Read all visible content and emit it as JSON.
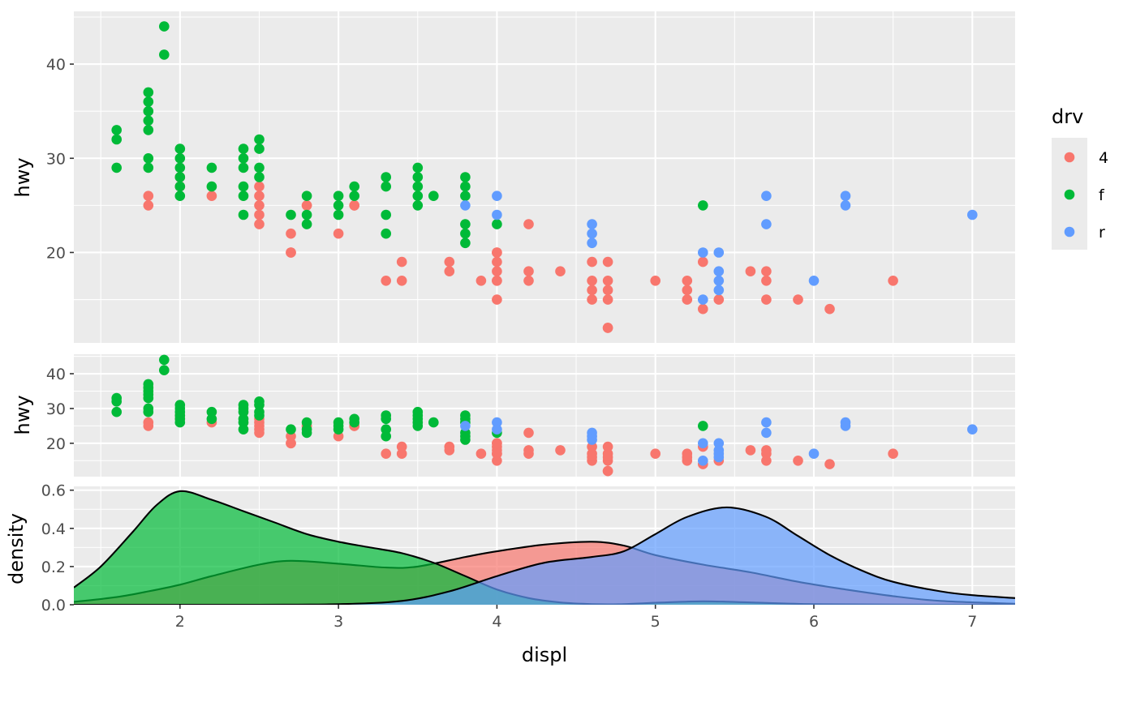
{
  "chart_data": [
    {
      "type": "scatter",
      "panel": "top",
      "xlabel": "",
      "ylabel": "hwy",
      "xlim": [
        1.33,
        7.27
      ],
      "ylim": [
        10.4,
        45.6
      ],
      "yticks": [
        20,
        30,
        40
      ],
      "series": [
        {
          "name": "4",
          "points": [
            [
              1.8,
              26
            ],
            [
              1.8,
              25
            ],
            [
              2.0,
              28
            ],
            [
              2.0,
              27
            ],
            [
              2.8,
              25
            ],
            [
              2.8,
              25
            ],
            [
              3.1,
              25
            ],
            [
              3.1,
              25
            ],
            [
              2.2,
              26
            ],
            [
              2.5,
              23
            ],
            [
              2.5,
              24
            ],
            [
              2.5,
              25
            ],
            [
              2.5,
              26
            ],
            [
              2.5,
              27
            ],
            [
              2.7,
              20
            ],
            [
              2.7,
              20
            ],
            [
              2.7,
              22
            ],
            [
              3.0,
              22
            ],
            [
              3.3,
              17
            ],
            [
              3.4,
              17
            ],
            [
              3.4,
              19
            ],
            [
              3.7,
              18
            ],
            [
              3.7,
              19
            ],
            [
              3.9,
              17
            ],
            [
              4.0,
              15
            ],
            [
              4.0,
              17
            ],
            [
              4.0,
              17
            ],
            [
              4.0,
              18
            ],
            [
              4.0,
              19
            ],
            [
              4.0,
              20
            ],
            [
              4.0,
              20
            ],
            [
              4.2,
              17
            ],
            [
              4.2,
              18
            ],
            [
              4.2,
              23
            ],
            [
              4.4,
              18
            ],
            [
              4.6,
              15
            ],
            [
              4.6,
              16
            ],
            [
              4.6,
              17
            ],
            [
              4.6,
              19
            ],
            [
              4.7,
              12
            ],
            [
              4.7,
              12
            ],
            [
              4.7,
              15
            ],
            [
              4.7,
              16
            ],
            [
              4.7,
              17
            ],
            [
              4.7,
              19
            ],
            [
              5.0,
              17
            ],
            [
              5.2,
              15
            ],
            [
              5.2,
              16
            ],
            [
              5.2,
              17
            ],
            [
              5.3,
              14
            ],
            [
              5.3,
              19
            ],
            [
              5.4,
              15
            ],
            [
              5.6,
              18
            ],
            [
              5.7,
              15
            ],
            [
              5.7,
              17
            ],
            [
              5.7,
              18
            ],
            [
              5.9,
              15
            ],
            [
              6.1,
              14
            ],
            [
              6.5,
              17
            ]
          ]
        },
        {
          "name": "f",
          "points": [
            [
              1.6,
              33
            ],
            [
              1.6,
              32
            ],
            [
              1.6,
              29
            ],
            [
              1.8,
              37
            ],
            [
              1.8,
              36
            ],
            [
              1.8,
              35
            ],
            [
              1.8,
              34
            ],
            [
              1.8,
              33
            ],
            [
              1.8,
              30
            ],
            [
              1.8,
              29
            ],
            [
              1.9,
              44
            ],
            [
              1.9,
              41
            ],
            [
              2.0,
              31
            ],
            [
              2.0,
              30
            ],
            [
              2.0,
              29
            ],
            [
              2.0,
              28
            ],
            [
              2.0,
              27
            ],
            [
              2.0,
              26
            ],
            [
              2.2,
              29
            ],
            [
              2.2,
              27
            ],
            [
              2.4,
              31
            ],
            [
              2.4,
              30
            ],
            [
              2.4,
              29
            ],
            [
              2.4,
              27
            ],
            [
              2.4,
              26
            ],
            [
              2.4,
              24
            ],
            [
              2.5,
              32
            ],
            [
              2.5,
              31
            ],
            [
              2.5,
              29
            ],
            [
              2.5,
              28
            ],
            [
              2.7,
              24
            ],
            [
              2.8,
              26
            ],
            [
              2.8,
              24
            ],
            [
              2.8,
              23
            ],
            [
              3.0,
              26
            ],
            [
              3.0,
              25
            ],
            [
              3.0,
              24
            ],
            [
              3.1,
              27
            ],
            [
              3.1,
              26
            ],
            [
              3.3,
              28
            ],
            [
              3.3,
              27
            ],
            [
              3.3,
              24
            ],
            [
              3.3,
              22
            ],
            [
              3.5,
              29
            ],
            [
              3.5,
              28
            ],
            [
              3.5,
              27
            ],
            [
              3.5,
              26
            ],
            [
              3.5,
              25
            ],
            [
              3.6,
              26
            ],
            [
              3.8,
              28
            ],
            [
              3.8,
              27
            ],
            [
              3.8,
              26
            ],
            [
              3.8,
              23
            ],
            [
              3.8,
              22
            ],
            [
              3.8,
              21
            ],
            [
              4.0,
              23
            ],
            [
              5.3,
              25
            ]
          ]
        },
        {
          "name": "r",
          "points": [
            [
              3.8,
              25
            ],
            [
              4.0,
              26
            ],
            [
              4.0,
              24
            ],
            [
              4.6,
              23
            ],
            [
              4.6,
              22
            ],
            [
              4.6,
              21
            ],
            [
              5.3,
              20
            ],
            [
              5.3,
              15
            ],
            [
              5.4,
              20
            ],
            [
              5.4,
              18
            ],
            [
              5.4,
              17
            ],
            [
              5.4,
              16
            ],
            [
              5.7,
              26
            ],
            [
              5.7,
              23
            ],
            [
              6.0,
              17
            ],
            [
              6.2,
              26
            ],
            [
              6.2,
              25
            ],
            [
              7.0,
              24
            ]
          ]
        }
      ]
    },
    {
      "type": "scatter",
      "panel": "middle",
      "xlabel": "",
      "ylabel": "hwy",
      "xlim": [
        1.33,
        7.27
      ],
      "ylim": [
        10.4,
        45.6
      ],
      "yticks": [
        20,
        30,
        40
      ],
      "note": "same data as top panel"
    },
    {
      "type": "area",
      "panel": "bottom",
      "xlabel": "displ",
      "ylabel": "density",
      "xlim": [
        1.33,
        7.27
      ],
      "ylim": [
        0,
        0.62
      ],
      "xticks": [
        2,
        3,
        4,
        5,
        6,
        7
      ],
      "yticks": [
        "0.0",
        "0.2",
        "0.4",
        "0.6"
      ],
      "series": [
        {
          "name": "4",
          "x": [
            1.33,
            1.6,
            1.8,
            2.0,
            2.2,
            2.5,
            2.7,
            3.0,
            3.3,
            3.5,
            3.8,
            4.0,
            4.3,
            4.6,
            4.8,
            5.0,
            5.3,
            5.6,
            5.9,
            6.2,
            6.5,
            6.8,
            7.27
          ],
          "y": [
            0.015,
            0.04,
            0.07,
            0.105,
            0.15,
            0.21,
            0.23,
            0.215,
            0.195,
            0.2,
            0.25,
            0.28,
            0.315,
            0.33,
            0.31,
            0.26,
            0.21,
            0.17,
            0.12,
            0.08,
            0.045,
            0.02,
            0.005
          ]
        },
        {
          "name": "f",
          "x": [
            1.33,
            1.5,
            1.7,
            1.85,
            2.0,
            2.2,
            2.4,
            2.6,
            2.8,
            3.0,
            3.2,
            3.4,
            3.6,
            3.8,
            4.0,
            4.2,
            4.4,
            4.6,
            4.8,
            5.0,
            5.3,
            5.6,
            6.0,
            6.5,
            7.27
          ],
          "y": [
            0.09,
            0.2,
            0.38,
            0.52,
            0.595,
            0.55,
            0.49,
            0.43,
            0.37,
            0.33,
            0.3,
            0.27,
            0.22,
            0.15,
            0.08,
            0.035,
            0.012,
            0.003,
            0.003,
            0.01,
            0.018,
            0.012,
            0.003,
            0.001,
            0.0
          ]
        },
        {
          "name": "r",
          "x": [
            1.33,
            2.5,
            3.0,
            3.4,
            3.7,
            4.0,
            4.3,
            4.6,
            4.8,
            5.0,
            5.2,
            5.45,
            5.7,
            5.9,
            6.1,
            6.3,
            6.5,
            6.8,
            7.0,
            7.27
          ],
          "y": [
            0.0,
            0.0,
            0.003,
            0.02,
            0.07,
            0.15,
            0.22,
            0.25,
            0.28,
            0.37,
            0.46,
            0.51,
            0.46,
            0.36,
            0.26,
            0.18,
            0.12,
            0.07,
            0.05,
            0.035
          ]
        }
      ]
    }
  ],
  "legend": {
    "title": "drv",
    "placement": "right",
    "items": [
      {
        "label": "4",
        "color": "#F8766D"
      },
      {
        "label": "f",
        "color": "#00BA38"
      },
      {
        "label": "r",
        "color": "#619CFF"
      }
    ]
  },
  "colors": {
    "4": "#F8766D",
    "f": "#00BA38",
    "r": "#619CFF"
  }
}
